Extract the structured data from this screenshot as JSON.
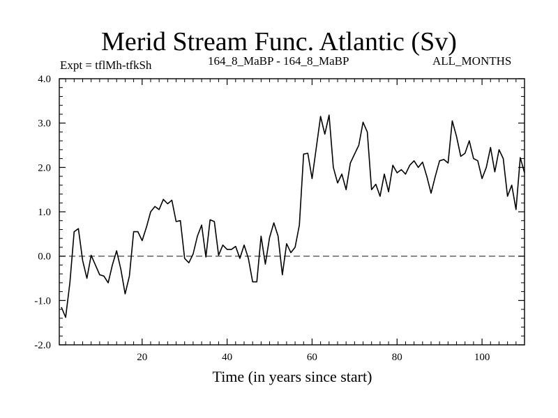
{
  "chart_data": {
    "type": "line",
    "title": "Merid Stream Func. Atlantic (Sv)",
    "subtitle": "164_8_MaBP - 164_8_MaBP",
    "experiment_label": "Expt = tflMh-tfkSh",
    "period_label": "ALL_MONTHS",
    "xlabel": "Time (in years since start)",
    "ylabel": "",
    "xlim": [
      0.5,
      110
    ],
    "ylim": [
      -2.0,
      4.0
    ],
    "x_ticks": [
      20,
      40,
      60,
      80,
      100
    ],
    "y_ticks": [
      "-2.0",
      "-1.0",
      "0.0",
      "1.0",
      "2.0",
      "3.0",
      "4.0"
    ],
    "reference_line": {
      "y": 0.0,
      "style": "dashed"
    },
    "series": [
      {
        "name": "Merid Stream Func. Atlantic",
        "x": [
          1,
          2,
          3,
          4,
          5,
          6,
          7,
          8,
          9,
          10,
          11,
          12,
          13,
          14,
          15,
          16,
          17,
          18,
          19,
          20,
          21,
          22,
          23,
          24,
          25,
          26,
          27,
          28,
          29,
          30,
          31,
          32,
          33,
          34,
          35,
          36,
          37,
          38,
          39,
          40,
          41,
          42,
          43,
          44,
          45,
          46,
          47,
          48,
          49,
          50,
          51,
          52,
          53,
          54,
          55,
          56,
          57,
          58,
          59,
          60,
          61,
          62,
          63,
          64,
          65,
          66,
          67,
          68,
          69,
          70,
          71,
          72,
          73,
          74,
          75,
          76,
          77,
          78,
          79,
          80,
          81,
          82,
          83,
          84,
          85,
          86,
          87,
          88,
          89,
          90,
          91,
          92,
          93,
          94,
          95,
          96,
          97,
          98,
          99,
          100,
          101,
          102,
          103,
          104,
          105,
          106,
          107,
          108,
          109,
          110
        ],
        "values": [
          -1.15,
          -1.38,
          -0.6,
          0.55,
          0.62,
          -0.1,
          -0.5,
          0.02,
          -0.2,
          -0.42,
          -0.45,
          -0.6,
          -0.2,
          0.12,
          -0.3,
          -0.85,
          -0.45,
          0.55,
          0.55,
          0.35,
          0.65,
          1.0,
          1.12,
          1.05,
          1.28,
          1.18,
          1.26,
          0.78,
          0.8,
          -0.05,
          -0.15,
          0.05,
          0.45,
          0.7,
          -0.02,
          0.82,
          0.78,
          0.02,
          0.25,
          0.15,
          0.15,
          0.22,
          -0.05,
          0.25,
          -0.05,
          -0.58,
          -0.58,
          0.45,
          -0.18,
          0.42,
          0.75,
          0.45,
          -0.42,
          0.28,
          0.08,
          0.2,
          0.7,
          2.3,
          2.32,
          1.75,
          2.45,
          3.15,
          2.75,
          3.18,
          2.0,
          1.65,
          1.85,
          1.5,
          2.1,
          2.3,
          2.5,
          3.02,
          2.8,
          1.5,
          1.62,
          1.35,
          1.85,
          1.45,
          2.05,
          1.88,
          1.95,
          1.85,
          2.05,
          2.15,
          2.0,
          2.12,
          1.8,
          1.42,
          1.8,
          2.15,
          2.18,
          2.1,
          3.05,
          2.7,
          2.25,
          2.32,
          2.6,
          2.2,
          2.15,
          1.75,
          2.0,
          2.45,
          1.9,
          2.4,
          2.2,
          1.35,
          1.6,
          1.05,
          2.22,
          1.88
        ]
      }
    ]
  }
}
